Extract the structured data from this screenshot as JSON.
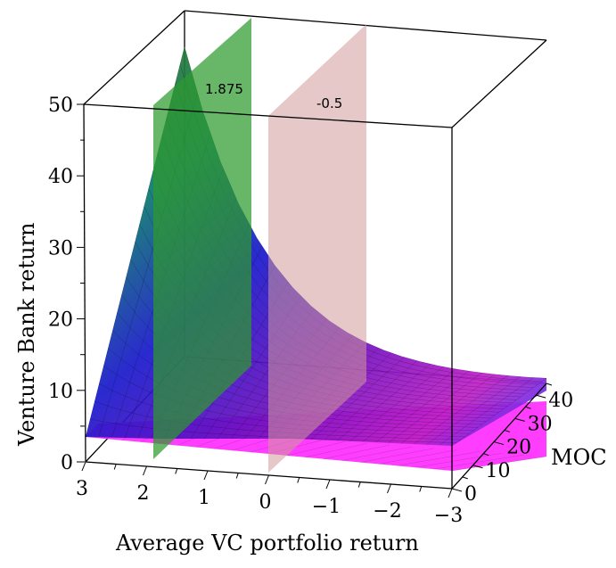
{
  "chart_data": {
    "type": "surface3d",
    "title": "",
    "xlabel": "Average VC portfolio return",
    "ylabel": "MOC",
    "zlabel": "Venture Bank return",
    "x_ticks": [
      "3",
      "2",
      "1",
      "0",
      "−1",
      "−2",
      "−3"
    ],
    "y_ticks": [
      "0",
      "10",
      "20",
      "30",
      "40"
    ],
    "z_ticks": [
      "0",
      "10",
      "20",
      "30",
      "40",
      "50"
    ],
    "xlim": [
      -3,
      3
    ],
    "ylim": [
      0,
      45
    ],
    "zlim": [
      0,
      50
    ],
    "planes": [
      {
        "label": "1.875",
        "x": 1.875,
        "color": "#2e9a2e"
      },
      {
        "label": "-0.5",
        "x": -0.5,
        "color": "#d4a0a0"
      }
    ],
    "surfaces": [
      {
        "name": "",
        "color": "#3b3bff",
        "peak": 50
      },
      {
        "name": "",
        "color": "#ff3bff",
        "peak": 3
      }
    ],
    "grid": false,
    "legend": "none"
  }
}
